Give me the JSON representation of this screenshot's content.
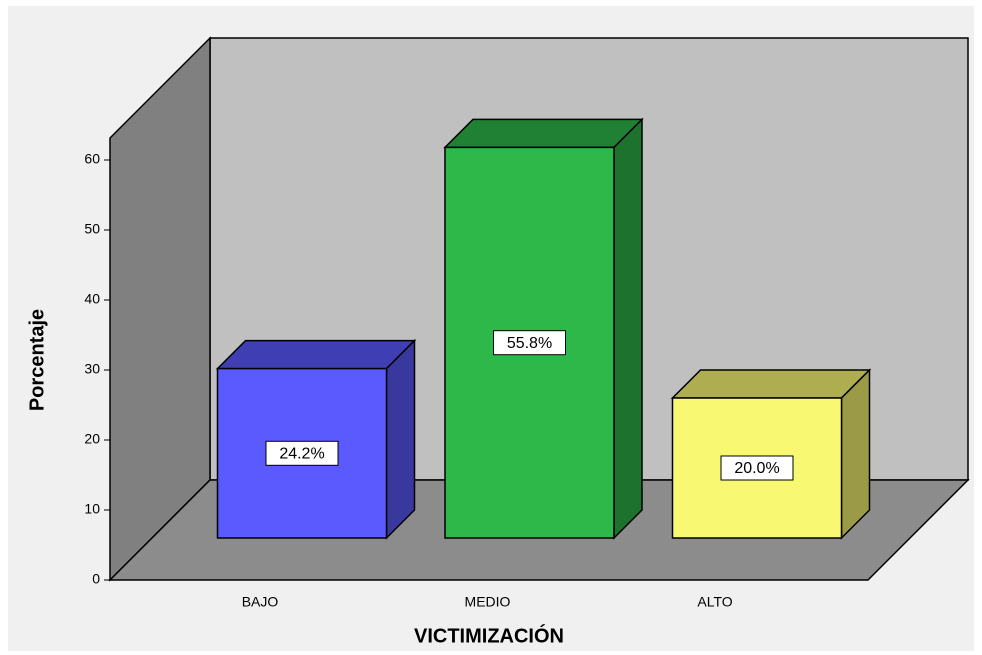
{
  "chart_data": {
    "type": "bar3d",
    "xlabel": "VICTIMIZACIÓN",
    "ylabel": "Porcentaje",
    "categories": [
      "BAJO",
      "MEDIO",
      "ALTO"
    ],
    "values": [
      24.2,
      55.8,
      20.0
    ],
    "value_labels": [
      "24.2%",
      "55.8%",
      "20.0%"
    ],
    "colors": [
      "#5a5aff",
      "#2eb84a",
      "#f8f872"
    ],
    "ylim": [
      0,
      60
    ],
    "yticks": [
      0,
      10,
      20,
      30,
      40,
      50,
      60
    ]
  }
}
